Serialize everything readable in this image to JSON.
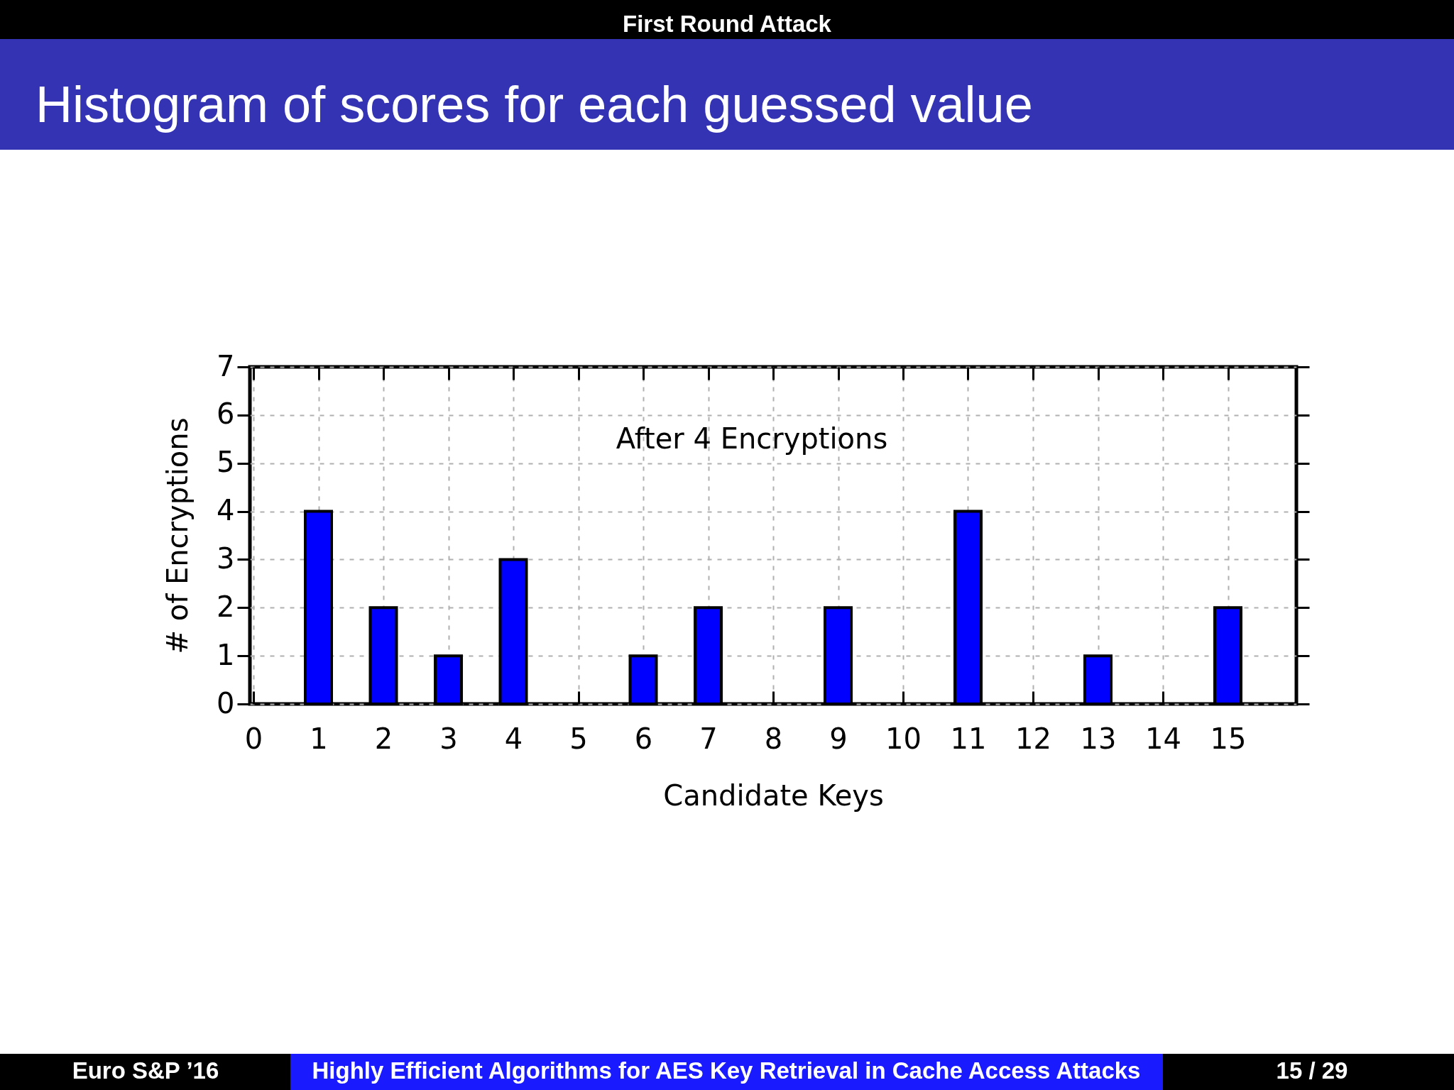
{
  "chart_data": {
    "type": "bar",
    "title": "Histogram of scores for each guessed value",
    "subtitle": "First Round Attack",
    "xlabel": "Candidate Keys",
    "ylabel": "# of Encryptions",
    "x": [
      1,
      2,
      3,
      4,
      6,
      7,
      9,
      11,
      13,
      15
    ],
    "values": [
      4,
      2,
      1,
      3,
      1,
      2,
      2,
      4,
      1,
      2
    ],
    "color": "#0000ff",
    "xlim": [
      0,
      16
    ],
    "xticks": [
      0,
      1,
      2,
      3,
      4,
      5,
      6,
      7,
      8,
      9,
      10,
      11,
      12,
      13,
      14,
      15
    ],
    "ylim": [
      0,
      7
    ],
    "yticks": [
      0,
      1,
      2,
      3,
      4,
      5,
      6,
      7
    ],
    "grid": true,
    "annotations": [
      "After 4 Encryptions",
      "Euro S&P ’16",
      "Highly Efficient Algorithms for AES Key Retrieval in Cache Access Attacks",
      "15 / 29"
    ]
  }
}
